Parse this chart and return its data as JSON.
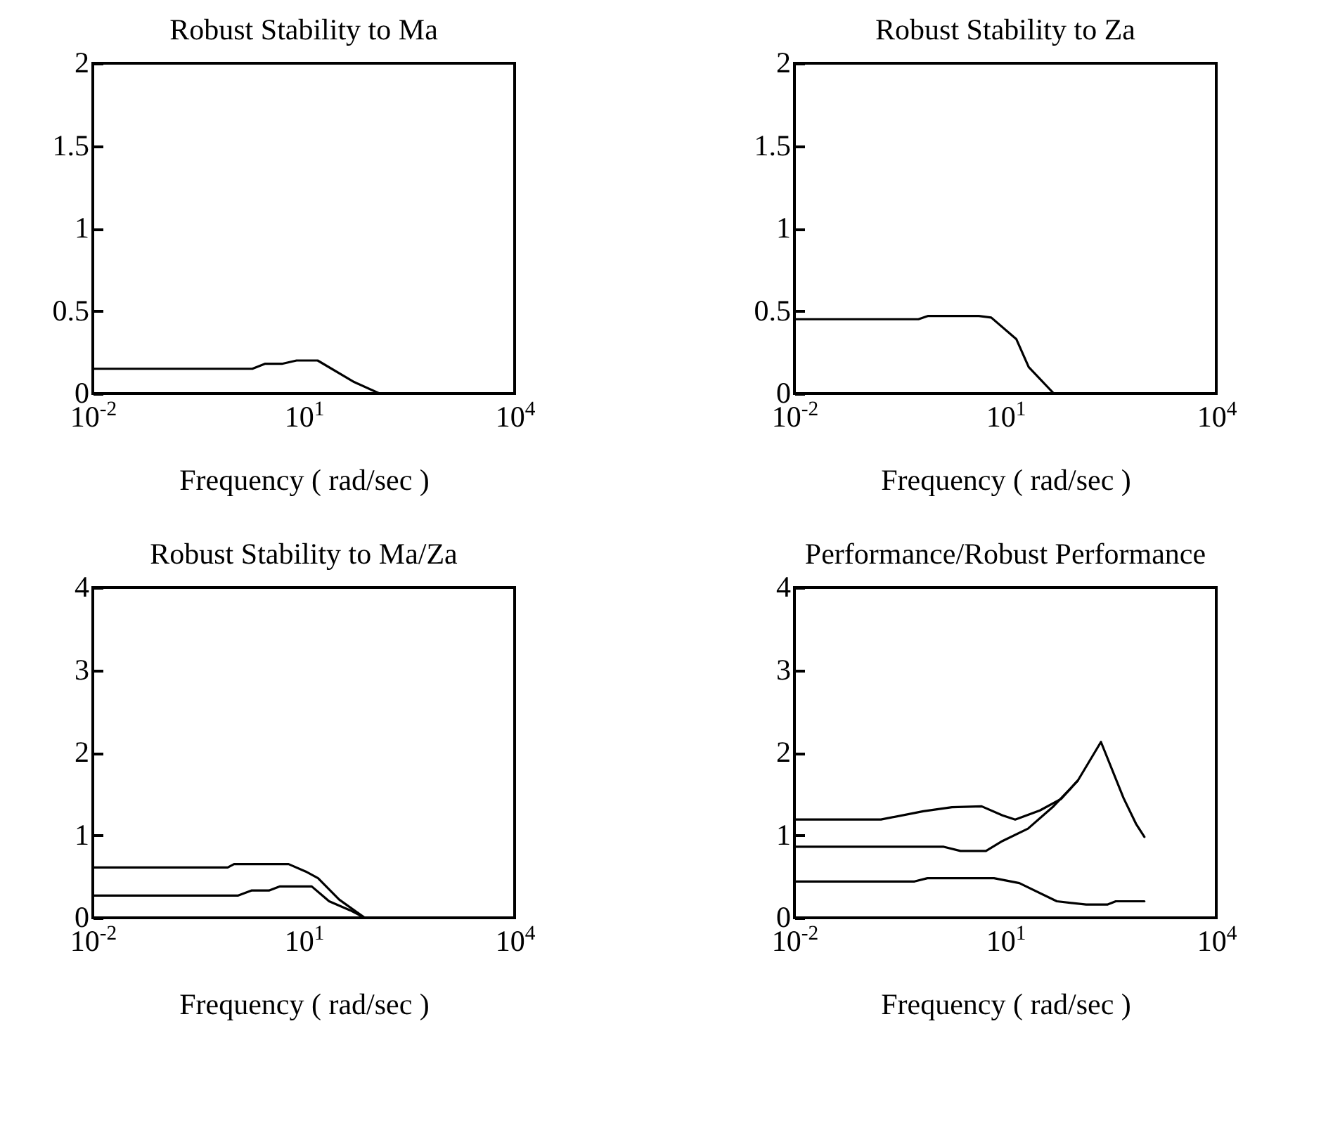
{
  "chart_data": [
    {
      "type": "line",
      "title": "Robust Stability to Ma",
      "xlabel": "Frequency  ( rad/sec )",
      "log": "x",
      "grid": false,
      "marker": "none",
      "line_style": "solid",
      "xlim": [
        0.01,
        10000
      ],
      "xticks": [
        {
          "value": 0.01,
          "label": "10$^{-2}$"
        },
        {
          "value": 10,
          "label": "10$^{1}$"
        },
        {
          "value": 10000,
          "label": "10$^{4}$"
        }
      ],
      "ylim": [
        0,
        2
      ],
      "yticks": [
        0,
        0.5,
        1,
        1.5,
        2
      ],
      "series": [
        {
          "color": "#000000",
          "x": [
            0.01,
            1.86,
            2.8,
            4.9,
            7.9,
            15.8,
            52,
            120
          ],
          "values": [
            0.15,
            0.15,
            0.18,
            0.18,
            0.2,
            0.2,
            0.07,
            0
          ]
        }
      ]
    },
    {
      "type": "line",
      "title": "Robust Stability to Za",
      "xlabel": "Frequency  ( rad/sec )",
      "log": "x",
      "grid": false,
      "marker": "none",
      "line_style": "solid",
      "xlim": [
        0.01,
        10000
      ],
      "xticks": [
        {
          "value": 0.01,
          "label": "10$^{-2}$"
        },
        {
          "value": 10,
          "label": "10$^{1}$"
        },
        {
          "value": 10000,
          "label": "10$^{4}$"
        }
      ],
      "ylim": [
        0,
        2
      ],
      "yticks": [
        0,
        0.5,
        1,
        1.5,
        2
      ],
      "series": [
        {
          "color": "#000000",
          "x": [
            0.01,
            0.58,
            0.8,
            4.2,
            6.3,
            14.3,
            21.5,
            49
          ],
          "values": [
            0.45,
            0.45,
            0.47,
            0.47,
            0.46,
            0.33,
            0.16,
            0
          ]
        }
      ]
    },
    {
      "type": "line",
      "title": "Robust Stability to Ma/Za",
      "xlabel": "Frequency  ( rad/sec )",
      "log": "x",
      "grid": false,
      "marker": "none",
      "line_style": "solid",
      "xlim": [
        0.01,
        10000
      ],
      "xticks": [
        {
          "value": 0.01,
          "label": "10$^{-2}$"
        },
        {
          "value": 10,
          "label": "10$^{1}$"
        },
        {
          "value": 10000,
          "label": "10$^{4}$"
        }
      ],
      "ylim": [
        0,
        4
      ],
      "yticks": [
        0,
        1,
        2,
        3,
        4
      ],
      "series": [
        {
          "color": "#000000",
          "x": [
            0.01,
            0.83,
            1.02,
            6.1,
            10.7,
            16,
            32,
            74
          ],
          "values": [
            0.61,
            0.61,
            0.65,
            0.65,
            0.56,
            0.48,
            0.22,
            0
          ]
        },
        {
          "color": "#000000",
          "x": [
            0.01,
            1.17,
            1.8,
            3.2,
            4.6,
            13,
            23,
            46,
            74
          ],
          "values": [
            0.27,
            0.27,
            0.33,
            0.33,
            0.38,
            0.38,
            0.2,
            0.09,
            0
          ]
        }
      ]
    },
    {
      "type": "line",
      "title": "Performance/Robust Performance",
      "xlabel": "Frequency  ( rad/sec )",
      "log": "x",
      "grid": false,
      "marker": "none",
      "line_style": "solid",
      "xlim": [
        0.01,
        10000
      ],
      "xticks": [
        {
          "value": 0.01,
          "label": "10$^{-2}$"
        },
        {
          "value": 10,
          "label": "10$^{1}$"
        },
        {
          "value": 10000,
          "label": "10$^{4}$"
        }
      ],
      "ylim": [
        0,
        4
      ],
      "yticks": [
        0,
        1,
        2,
        3,
        4
      ],
      "series": [
        {
          "color": "#000000",
          "x": [
            0.01,
            0.17,
            0.68,
            1.74,
            4.6,
            9.1,
            13.8,
            31,
            62,
            107,
            229,
            480,
            720,
            950
          ],
          "values": [
            1.19,
            1.19,
            1.29,
            1.34,
            1.35,
            1.24,
            1.19,
            1.3,
            1.44,
            1.66,
            2.13,
            1.45,
            1.14,
            0.98
          ]
        },
        {
          "color": "#000000",
          "x": [
            0.01,
            1.33,
            2.3,
            5.3,
            9.1,
            21,
            47,
            81,
            107
          ],
          "values": [
            0.86,
            0.86,
            0.81,
            0.81,
            0.93,
            1.08,
            1.34,
            1.55,
            1.66
          ]
        },
        {
          "color": "#000000",
          "x": [
            0.01,
            0.51,
            0.78,
            6.9,
            15.8,
            54,
            141,
            282,
            372,
            950
          ],
          "values": [
            0.44,
            0.44,
            0.48,
            0.48,
            0.42,
            0.2,
            0.16,
            0.16,
            0.2,
            0.2
          ]
        }
      ]
    }
  ]
}
